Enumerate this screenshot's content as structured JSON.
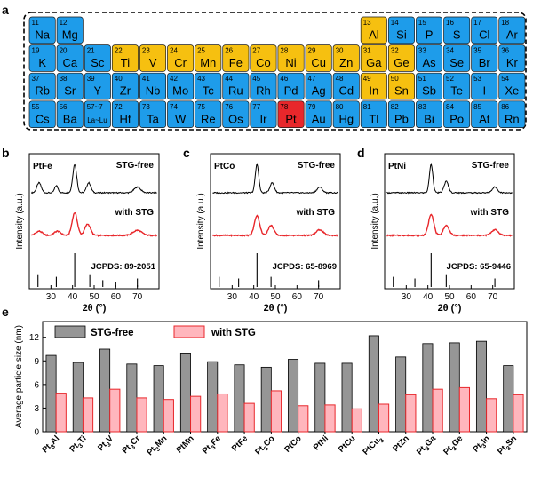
{
  "panel_a": {
    "letter": "a",
    "colors": {
      "blue": "#1e9cea",
      "yellow": "#f6c010",
      "red": "#e8272b"
    },
    "rows": [
      [
        {
          "n": "11",
          "s": "Na",
          "c": "blue"
        },
        {
          "n": "12",
          "s": "Mg",
          "c": "blue"
        },
        null,
        null,
        null,
        null,
        null,
        null,
        null,
        null,
        null,
        null,
        {
          "n": "13",
          "s": "Al",
          "c": "yellow"
        },
        {
          "n": "14",
          "s": "Si",
          "c": "blue"
        },
        {
          "n": "15",
          "s": "P",
          "c": "blue"
        },
        {
          "n": "16",
          "s": "S",
          "c": "blue"
        },
        {
          "n": "17",
          "s": "Cl",
          "c": "blue"
        },
        {
          "n": "18",
          "s": "Ar",
          "c": "blue"
        }
      ],
      [
        {
          "n": "19",
          "s": "K",
          "c": "blue"
        },
        {
          "n": "20",
          "s": "Ca",
          "c": "blue"
        },
        {
          "n": "21",
          "s": "Sc",
          "c": "blue"
        },
        {
          "n": "22",
          "s": "Ti",
          "c": "yellow"
        },
        {
          "n": "23",
          "s": "V",
          "c": "yellow"
        },
        {
          "n": "24",
          "s": "Cr",
          "c": "yellow"
        },
        {
          "n": "25",
          "s": "Mn",
          "c": "yellow"
        },
        {
          "n": "26",
          "s": "Fe",
          "c": "yellow"
        },
        {
          "n": "27",
          "s": "Co",
          "c": "yellow"
        },
        {
          "n": "28",
          "s": "Ni",
          "c": "yellow"
        },
        {
          "n": "29",
          "s": "Cu",
          "c": "yellow"
        },
        {
          "n": "30",
          "s": "Zn",
          "c": "yellow"
        },
        {
          "n": "31",
          "s": "Ga",
          "c": "yellow"
        },
        {
          "n": "32",
          "s": "Ge",
          "c": "yellow"
        },
        {
          "n": "33",
          "s": "As",
          "c": "blue"
        },
        {
          "n": "34",
          "s": "Se",
          "c": "blue"
        },
        {
          "n": "35",
          "s": "Br",
          "c": "blue"
        },
        {
          "n": "36",
          "s": "Kr",
          "c": "blue"
        }
      ],
      [
        {
          "n": "37",
          "s": "Rb",
          "c": "blue"
        },
        {
          "n": "38",
          "s": "Sr",
          "c": "blue"
        },
        {
          "n": "39",
          "s": "Y",
          "c": "blue"
        },
        {
          "n": "40",
          "s": "Zr",
          "c": "blue"
        },
        {
          "n": "41",
          "s": "Nb",
          "c": "blue"
        },
        {
          "n": "42",
          "s": "Mo",
          "c": "blue"
        },
        {
          "n": "43",
          "s": "Tc",
          "c": "blue"
        },
        {
          "n": "44",
          "s": "Ru",
          "c": "blue"
        },
        {
          "n": "45",
          "s": "Rh",
          "c": "blue"
        },
        {
          "n": "46",
          "s": "Pd",
          "c": "blue"
        },
        {
          "n": "47",
          "s": "Ag",
          "c": "blue"
        },
        {
          "n": "48",
          "s": "Cd",
          "c": "blue"
        },
        {
          "n": "49",
          "s": "In",
          "c": "yellow"
        },
        {
          "n": "50",
          "s": "Sn",
          "c": "yellow"
        },
        {
          "n": "51",
          "s": "Sb",
          "c": "blue"
        },
        {
          "n": "52",
          "s": "Te",
          "c": "blue"
        },
        {
          "n": "53",
          "s": "I",
          "c": "blue"
        },
        {
          "n": "54",
          "s": "Xe",
          "c": "blue"
        }
      ],
      [
        {
          "n": "55",
          "s": "Cs",
          "c": "blue"
        },
        {
          "n": "56",
          "s": "Ba",
          "c": "blue"
        },
        {
          "n": "57~7",
          "s": "La~Lu",
          "c": "blue",
          "small": true
        },
        {
          "n": "72",
          "s": "Hf",
          "c": "blue"
        },
        {
          "n": "73",
          "s": "Ta",
          "c": "blue"
        },
        {
          "n": "74",
          "s": "W",
          "c": "blue"
        },
        {
          "n": "75",
          "s": "Re",
          "c": "blue"
        },
        {
          "n": "76",
          "s": "Os",
          "c": "blue"
        },
        {
          "n": "77",
          "s": "Ir",
          "c": "blue"
        },
        {
          "n": "78",
          "s": "Pt",
          "c": "red"
        },
        {
          "n": "79",
          "s": "Au",
          "c": "blue"
        },
        {
          "n": "80",
          "s": "Hg",
          "c": "blue"
        },
        {
          "n": "81",
          "s": "Tl",
          "c": "blue"
        },
        {
          "n": "82",
          "s": "Pb",
          "c": "blue"
        },
        {
          "n": "83",
          "s": "Bi",
          "c": "blue"
        },
        {
          "n": "84",
          "s": "Po",
          "c": "blue"
        },
        {
          "n": "85",
          "s": "At",
          "c": "blue"
        },
        {
          "n": "86",
          "s": "Rn",
          "c": "blue"
        }
      ]
    ]
  },
  "chart_data": [
    {
      "panel": "b",
      "type": "line",
      "sample_label": "PtFe",
      "xlabel": "2θ (°)",
      "ylabel": "Intensity (a.u.)",
      "xlim": [
        20,
        80
      ],
      "xticks": [
        30,
        40,
        50,
        60,
        70
      ],
      "series": [
        {
          "name": "STG-free",
          "color": "#000000",
          "peaks": [
            [
              24.5,
              0.35,
              1.0
            ],
            [
              32.5,
              0.25,
              0.8
            ],
            [
              41,
              1.0,
              0.9
            ],
            [
              47.5,
              0.35,
              1.0
            ],
            [
              70,
              0.2,
              1.5
            ]
          ]
        },
        {
          "name": "with STG",
          "color": "#e8272b",
          "peaks": [
            [
              24.5,
              0.15,
              1.5
            ],
            [
              33,
              0.15,
              1.5
            ],
            [
              41,
              0.8,
              1.2
            ],
            [
              47,
              0.4,
              1.3
            ],
            [
              70,
              0.18,
              2.0
            ]
          ]
        }
      ],
      "reference": {
        "label": "JCPDS: 89-2051",
        "sticks": [
          [
            24,
            0.35
          ],
          [
            32.5,
            0.3
          ],
          [
            41,
            1.0
          ],
          [
            48,
            0.35
          ],
          [
            54,
            0.2
          ],
          [
            60,
            0.15
          ],
          [
            70,
            0.25
          ]
        ]
      }
    },
    {
      "panel": "c",
      "type": "line",
      "sample_label": "PtCo",
      "xlabel": "2θ (°)",
      "ylabel": "Intensity (a.u.)",
      "xlim": [
        20,
        80
      ],
      "xticks": [
        30,
        40,
        50,
        60,
        70
      ],
      "series": [
        {
          "name": "STG-free",
          "color": "#000000",
          "peaks": [
            [
              41.5,
              1.0,
              0.8
            ],
            [
              48.5,
              0.35,
              1.0
            ],
            [
              70.5,
              0.2,
              1.2
            ]
          ]
        },
        {
          "name": "with STG",
          "color": "#e8272b",
          "peaks": [
            [
              41.5,
              0.7,
              1.2
            ],
            [
              48,
              0.35,
              1.3
            ],
            [
              70.5,
              0.2,
              1.6
            ]
          ]
        }
      ],
      "reference": {
        "label": "JCPDS: 65-8969",
        "sticks": [
          [
            24,
            0.3
          ],
          [
            33,
            0.25
          ],
          [
            41.5,
            1.0
          ],
          [
            48,
            0.3
          ],
          [
            70,
            0.2
          ]
        ]
      }
    },
    {
      "panel": "d",
      "type": "line",
      "sample_label": "PtNi",
      "xlabel": "2θ (°)",
      "ylabel": "Intensity (a.u.)",
      "xlim": [
        20,
        80
      ],
      "xticks": [
        30,
        40,
        50,
        60,
        70
      ],
      "series": [
        {
          "name": "STG-free",
          "color": "#000000",
          "peaks": [
            [
              41.5,
              1.0,
              0.8
            ],
            [
              48.5,
              0.4,
              1.0
            ],
            [
              71,
              0.2,
              1.2
            ]
          ]
        },
        {
          "name": "with STG",
          "color": "#e8272b",
          "peaks": [
            [
              41.5,
              0.75,
              1.2
            ],
            [
              48.5,
              0.35,
              1.3
            ],
            [
              71,
              0.2,
              1.6
            ]
          ]
        }
      ],
      "reference": {
        "label": "JCPDS: 65-9446",
        "sticks": [
          [
            24,
            0.3
          ],
          [
            34,
            0.25
          ],
          [
            41.5,
            1.0
          ],
          [
            48.5,
            0.35
          ],
          [
            71,
            0.25
          ]
        ]
      }
    },
    {
      "panel": "e",
      "type": "bar",
      "ylabel": "Average particle size (nm)",
      "ylim": [
        0,
        14
      ],
      "yticks": [
        0,
        3,
        6,
        9,
        12
      ],
      "legend_position": "top-left",
      "categories": [
        {
          "base": "Pt",
          "sub": "3",
          "rest": "Al"
        },
        {
          "base": "Pt",
          "sub": "3",
          "rest": "Ti"
        },
        {
          "base": "Pt",
          "sub": "3",
          "rest": "V"
        },
        {
          "base": "Pt",
          "sub": "3",
          "rest": "Cr"
        },
        {
          "base": "Pt",
          "sub": "3",
          "rest": "Mn"
        },
        {
          "base": "PtMn",
          "sub": "",
          "rest": ""
        },
        {
          "base": "Pt",
          "sub": "3",
          "rest": "Fe"
        },
        {
          "base": "PtFe",
          "sub": "",
          "rest": ""
        },
        {
          "base": "Pt",
          "sub": "3",
          "rest": "Co"
        },
        {
          "base": "PtCo",
          "sub": "",
          "rest": ""
        },
        {
          "base": "PtNi",
          "sub": "",
          "rest": ""
        },
        {
          "base": "PtCu",
          "sub": "",
          "rest": ""
        },
        {
          "base": "PtCu",
          "sub": "3",
          "rest": ""
        },
        {
          "base": "PtZn",
          "sub": "",
          "rest": ""
        },
        {
          "base": "Pt",
          "sub": "3",
          "rest": "Ga"
        },
        {
          "base": "Pt",
          "sub": "3",
          "rest": "Ge"
        },
        {
          "base": "Pt",
          "sub": "3",
          "rest": "In"
        },
        {
          "base": "Pt",
          "sub": "3",
          "rest": "Sn"
        }
      ],
      "series": [
        {
          "name": "STG-free",
          "color": "#969696",
          "values": [
            9.7,
            8.8,
            10.5,
            8.6,
            8.4,
            10.0,
            8.9,
            8.5,
            8.2,
            9.2,
            8.7,
            8.7,
            12.2,
            9.5,
            11.2,
            11.3,
            11.5,
            8.4
          ]
        },
        {
          "name": "with STG",
          "color": "#ffb6bd",
          "stroke": "#e8272b",
          "values": [
            4.9,
            4.3,
            5.4,
            4.3,
            4.1,
            4.5,
            4.8,
            3.6,
            5.2,
            3.3,
            3.4,
            2.9,
            3.5,
            4.7,
            5.4,
            5.6,
            4.2,
            4.7
          ]
        }
      ]
    }
  ]
}
